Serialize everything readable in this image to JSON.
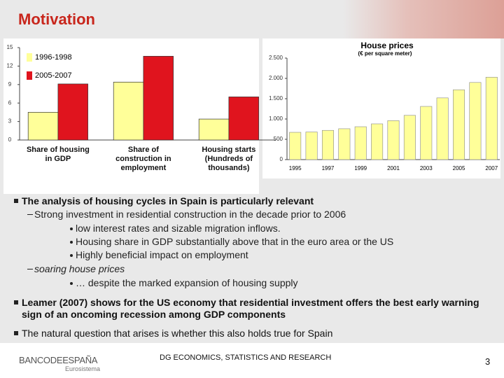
{
  "header": {
    "title": "Motivation"
  },
  "chart_data": [
    {
      "type": "bar",
      "categories": [
        "Share of housing in GDP",
        "Share of construction in employment",
        "Housing starts (Hundreds of thousands)"
      ],
      "series": [
        {
          "name": "1996-1998",
          "color": "#ffff99",
          "values": [
            4.5,
            9.4,
            3.4
          ]
        },
        {
          "name": "2005-2007",
          "color": "#e0141e",
          "values": [
            9.1,
            13.6,
            7.0
          ]
        }
      ],
      "ylim": [
        0,
        15
      ],
      "yticks": [
        0,
        3,
        6,
        9,
        12,
        15
      ],
      "legend": "upper left"
    },
    {
      "type": "bar",
      "title": "House prices",
      "subtitle": "(€ per square meter)",
      "categories": [
        "1995",
        null,
        "1997",
        null,
        "1999",
        null,
        "2001",
        null,
        "2003",
        null,
        "2005",
        null,
        "2007"
      ],
      "values": [
        672,
        680,
        720,
        760,
        810,
        880,
        960,
        1090,
        1310,
        1520,
        1720,
        1900,
        2030
      ],
      "color": "#ffff99",
      "ylim": [
        0,
        2500
      ],
      "yticks": [
        0,
        500,
        {
          "value": 1000,
          "label": "1.000"
        },
        {
          "value": 1500,
          "label": "1.500"
        },
        {
          "value": 2000,
          "label": "2.000"
        },
        {
          "value": 2500,
          "label": "2.500"
        }
      ],
      "grid": false
    }
  ],
  "bullets": [
    {
      "level": 1,
      "text": "The analysis of housing cycles in Spain is particularly relevant"
    },
    {
      "level": 2,
      "text": "Strong investment in residential construction in the decade prior to 2006"
    },
    {
      "level": 3,
      "text": "low interest rates and sizable migration inflows."
    },
    {
      "level": 3,
      "text": "Housing share in GDP substantially above that in the euro area or the US"
    },
    {
      "level": 3,
      "text": "Highly beneficial impact on employment"
    },
    {
      "level": 2,
      "text": "soaring house prices",
      "italic": true
    },
    {
      "level": 3,
      "text": "… despite the marked expansion of housing supply"
    },
    {
      "level": 1,
      "text": "Leamer (2007) shows for the US economy that residential investment offers the best early warning sign of an oncoming recession among GDP components"
    },
    {
      "level": 1,
      "text": "The natural question that arises is whether this also holds true for Spain",
      "bold": false
    }
  ],
  "footer": {
    "bank": "BANCODEESPAÑA",
    "eurosystem": "Eurosistema",
    "department": "DG ECONOMICS, STATISTICS AND RESEARCH",
    "page": "3"
  }
}
